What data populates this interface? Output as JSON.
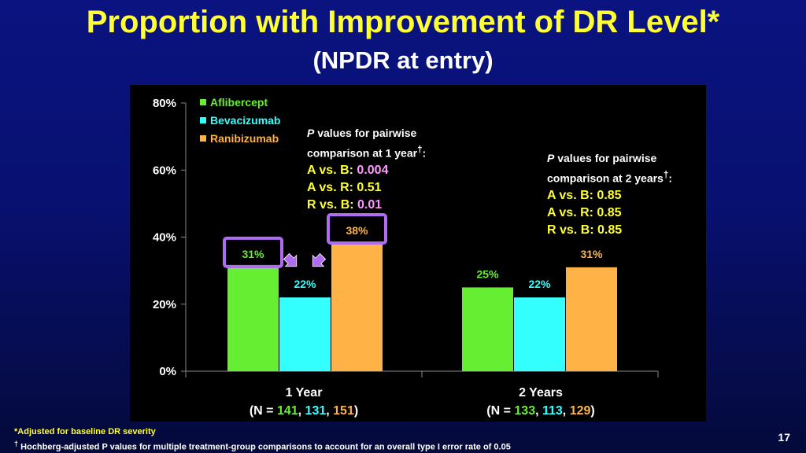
{
  "slide": {
    "title": "Proportion with Improvement of DR Level*",
    "subtitle": "(NPDR at entry)",
    "page_number": "17",
    "footnotes": [
      "*Adjusted for baseline DR severity",
      "Hochberg-adjusted P values for multiple treatment-group comparisons to account for an overall type I error rate of 0.05"
    ]
  },
  "colors": {
    "aflibercept": "#66ee33",
    "bevacizumab": "#33ffff",
    "ranibizumab": "#ffb347",
    "title": "#ffff33",
    "highlight_box": "#b06cf0",
    "arrow": "#b06cf0"
  },
  "pvalues_1year": {
    "heading_p": "P",
    "heading_rest1": " values for pairwise",
    "heading_line2": "comparison at 1 year",
    "dagger": "†",
    "colon": ":",
    "rows": [
      {
        "label": "A vs. B: ",
        "value": "0.004"
      },
      {
        "label": "A vs. R: ",
        "value": "0.51"
      },
      {
        "label": "R vs. B: ",
        "value": "0.01"
      }
    ]
  },
  "pvalues_2years": {
    "heading_p": "P",
    "heading_rest1": " values for pairwise",
    "heading_line2": "comparison at 2 years",
    "dagger": "†",
    "colon": ":",
    "rows": [
      {
        "label": "A vs. B: ",
        "value": "0.85"
      },
      {
        "label": "A vs. R: ",
        "value": "0.85"
      },
      {
        "label": "R vs. B: ",
        "value": "0.85"
      }
    ]
  },
  "chart_data": {
    "type": "bar",
    "categories": [
      "1 Year",
      "2 Years"
    ],
    "category_n": [
      {
        "prefix": "(N = ",
        "n": [
          "141",
          "131",
          "151"
        ],
        "suffix": ")"
      },
      {
        "prefix": "(N = ",
        "n": [
          "133",
          "113",
          "129"
        ],
        "suffix": ")"
      }
    ],
    "series": [
      {
        "name": "Aflibercept",
        "values": [
          31,
          25
        ],
        "labels": [
          "31%",
          "25%"
        ]
      },
      {
        "name": "Bevacizumab",
        "values": [
          22,
          22
        ],
        "labels": [
          "22%",
          "22%"
        ]
      },
      {
        "name": "Ranibizumab",
        "values": [
          38,
          31
        ],
        "labels": [
          "38%",
          "31%"
        ]
      }
    ],
    "ylim": [
      0,
      80
    ],
    "yticks": [
      {
        "value": 0,
        "label": "0%"
      },
      {
        "value": 20,
        "label": "20%"
      },
      {
        "value": 40,
        "label": "40%"
      },
      {
        "value": 60,
        "label": "60%"
      },
      {
        "value": 80,
        "label": "80%"
      }
    ],
    "legend_position": "top-left",
    "grid": false,
    "highlighted_bars": [
      {
        "series": 0,
        "category": 0
      },
      {
        "series": 2,
        "category": 0
      }
    ]
  }
}
